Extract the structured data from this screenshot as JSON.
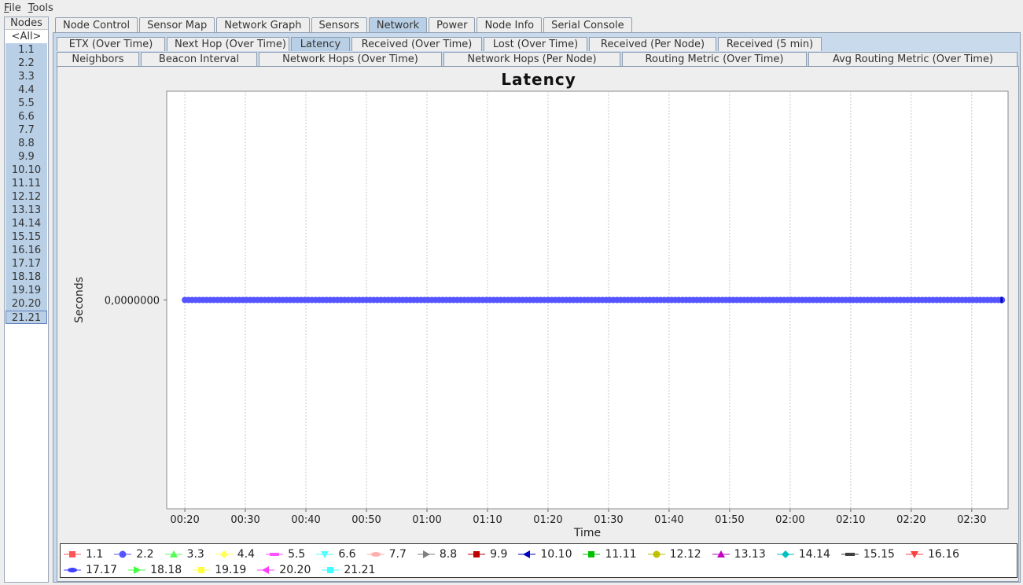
{
  "menu": [
    {
      "key": "F",
      "rest": "ile"
    },
    {
      "key": "T",
      "rest": "ools"
    }
  ],
  "nodes": {
    "title": "Nodes",
    "items": [
      "<All>",
      "1.1",
      "2.2",
      "3.3",
      "4.4",
      "5.5",
      "6.6",
      "7.7",
      "8.8",
      "9.9",
      "10.10",
      "11.11",
      "12.12",
      "13.13",
      "14.14",
      "15.15",
      "16.16",
      "17.17",
      "18.18",
      "19.19",
      "20.20",
      "21.21"
    ]
  },
  "tabs": [
    "Node Control",
    "Sensor Map",
    "Network Graph",
    "Sensors",
    "Network",
    "Power",
    "Node Info",
    "Serial Console"
  ],
  "active_tab": "Network",
  "subtabs_row1": [
    "ETX (Over Time)",
    "Next Hop (Over Time)",
    "Latency",
    "Received (Over Time)",
    "Lost (Over Time)",
    "Received (Per Node)",
    "Received (5 min)"
  ],
  "subtabs_row2": [
    "Neighbors",
    "Beacon Interval",
    "Network Hops (Over Time)",
    "Network Hops (Per Node)",
    "Routing Metric (Over Time)",
    "Avg Routing Metric (Over Time)"
  ],
  "active_subtab": "Latency",
  "chart_data": {
    "type": "scatter",
    "title": "Latency",
    "xlabel": "Time",
    "ylabel": "Seconds",
    "x_ticks": [
      "00:20",
      "00:30",
      "00:40",
      "00:50",
      "01:00",
      "01:10",
      "01:20",
      "01:30",
      "01:40",
      "01:50",
      "02:00",
      "02:10",
      "02:20",
      "02:30"
    ],
    "x_range": [
      "00:17",
      "02:36"
    ],
    "y_ticks": [
      "0,0000000"
    ],
    "y_value": 0,
    "grid": true,
    "legend_position": "bottom",
    "series_x_range": [
      "00:20",
      "02:35"
    ],
    "series": [
      {
        "name": "1.1",
        "color": "#ff5555",
        "marker": "square"
      },
      {
        "name": "2.2",
        "color": "#5555ff",
        "marker": "circle"
      },
      {
        "name": "3.3",
        "color": "#55ff55",
        "marker": "triangle-up"
      },
      {
        "name": "4.4",
        "color": "#ffff55",
        "marker": "diamond"
      },
      {
        "name": "5.5",
        "color": "#ff55ff",
        "marker": "rect-h"
      },
      {
        "name": "6.6",
        "color": "#55ffff",
        "marker": "triangle-down"
      },
      {
        "name": "7.7",
        "color": "#ffafaf",
        "marker": "ellipse"
      },
      {
        "name": "8.8",
        "color": "#808080",
        "marker": "triangle-right"
      },
      {
        "name": "9.9",
        "color": "#c00000",
        "marker": "square"
      },
      {
        "name": "10.10",
        "color": "#0000c0",
        "marker": "triangle-left"
      },
      {
        "name": "11.11",
        "color": "#00c000",
        "marker": "square"
      },
      {
        "name": "12.12",
        "color": "#c0c000",
        "marker": "circle"
      },
      {
        "name": "13.13",
        "color": "#c000c0",
        "marker": "triangle-up"
      },
      {
        "name": "14.14",
        "color": "#00c0c0",
        "marker": "diamond"
      },
      {
        "name": "15.15",
        "color": "#404040",
        "marker": "rect-h"
      },
      {
        "name": "16.16",
        "color": "#ff4040",
        "marker": "triangle-down"
      },
      {
        "name": "17.17",
        "color": "#4040ff",
        "marker": "ellipse"
      },
      {
        "name": "18.18",
        "color": "#40ff40",
        "marker": "triangle-right"
      },
      {
        "name": "19.19",
        "color": "#ffff40",
        "marker": "square"
      },
      {
        "name": "20.20",
        "color": "#ff40ff",
        "marker": "triangle-left"
      },
      {
        "name": "21.21",
        "color": "#40ffff",
        "marker": "square"
      }
    ]
  }
}
